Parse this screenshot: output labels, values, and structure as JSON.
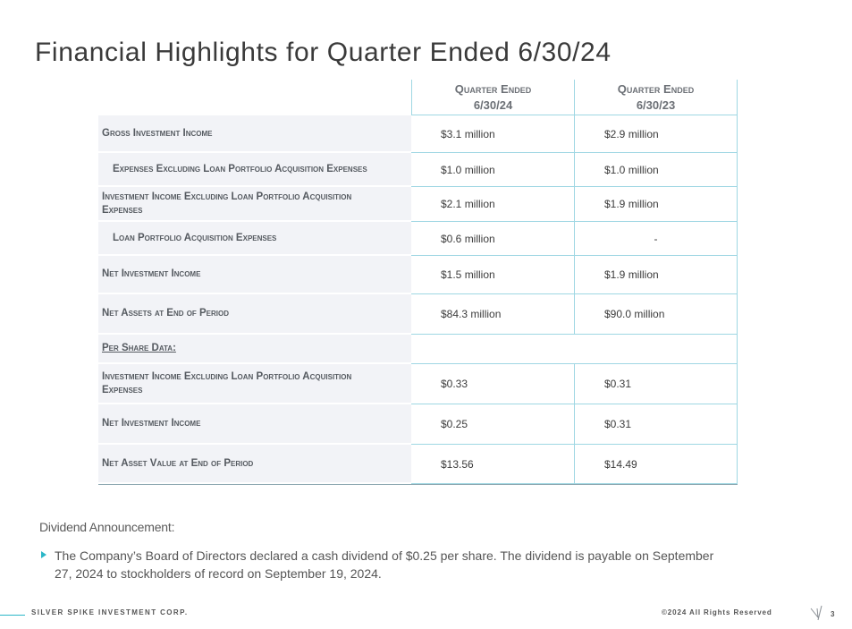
{
  "title": "Financial Highlights for Quarter Ended 6/30/24",
  "table": {
    "columns": [
      {
        "line1": "Quarter Ended",
        "line2": "6/30/24"
      },
      {
        "line1": "Quarter Ended",
        "line2": "6/30/23"
      }
    ],
    "rows": [
      {
        "label": "Gross Investment Income",
        "v1": "$3.1 million",
        "v2": "$2.9 million"
      },
      {
        "label": "Expenses Excluding Loan Portfolio Acquisition Expenses",
        "v1": "$1.0 million",
        "v2": "$1.0 million"
      },
      {
        "label": "Investment Income Excluding Loan Portfolio Acquisition Expenses",
        "v1": "$2.1 million",
        "v2": "$1.9 million"
      },
      {
        "label": "Loan Portfolio Acquisition Expenses",
        "v1": "$0.6 million",
        "v2": "-"
      },
      {
        "label": "Net Investment Income",
        "v1": "$1.5 million",
        "v2": "$1.9 million"
      },
      {
        "label": "Net Assets at End of Period",
        "v1": "$84.3 million",
        "v2": "$90.0 million"
      },
      {
        "label": "Per Share Data:"
      },
      {
        "label": "Investment Income Excluding Loan Portfolio Acquisition Expenses",
        "v1": "$0.33",
        "v2": "$0.31"
      },
      {
        "label": "Net Investment Income",
        "v1": "$0.25",
        "v2": "$0.31"
      },
      {
        "label": "Net Asset Value at End of Period",
        "v1": "$13.56",
        "v2": "$14.49"
      }
    ]
  },
  "dividend": {
    "heading": "Dividend Announcement:",
    "text": "The Company’s Board of Directors declared a cash dividend of $0.25 per share. The dividend is payable on September 27, 2024 to stockholders of record on September 19, 2024."
  },
  "footer": {
    "company": "SILVER SPIKE INVESTMENT CORP.",
    "copyright": "©2024 All Rights Reserved",
    "page": "3"
  },
  "colors": {
    "accent": "#2bb6c7",
    "table_border": "#9fd7e3",
    "label_bg": "#f2f3f7"
  }
}
